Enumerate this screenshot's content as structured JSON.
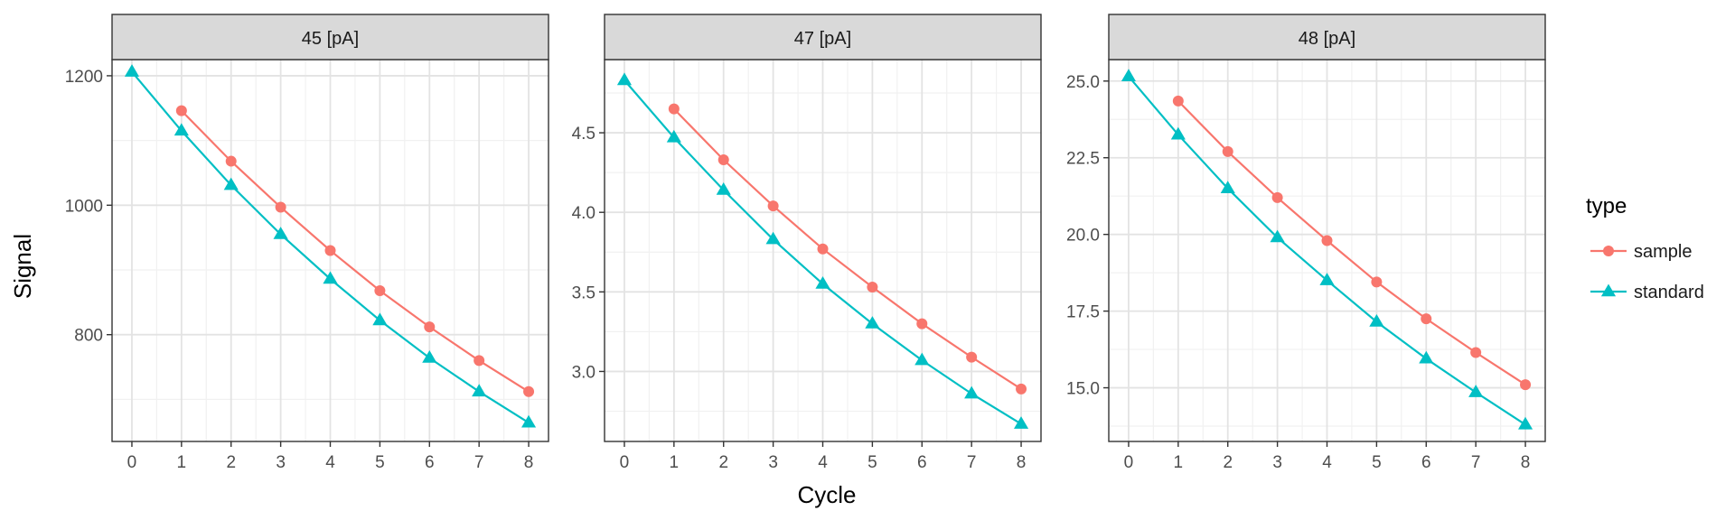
{
  "chart_data": {
    "type": "line",
    "ylabel": "Signal",
    "xlabel": "Cycle",
    "x": [
      0,
      1,
      2,
      3,
      4,
      5,
      6,
      7,
      8
    ],
    "x_ticks": [
      "0",
      "1",
      "2",
      "3",
      "4",
      "5",
      "6",
      "7",
      "8"
    ],
    "xlim": [
      -0.4,
      8.4
    ],
    "grid": true,
    "legend": {
      "title": "type",
      "position": "right",
      "entries": [
        {
          "name": "sample",
          "color": "#F8766D",
          "marker": "circle"
        },
        {
          "name": "standard",
          "color": "#00BFC4",
          "marker": "triangle"
        }
      ]
    },
    "panels": [
      {
        "strip": "45 [pA]",
        "ylim": [
          635,
          1225
        ],
        "y_ticks": [
          800,
          1000,
          1200
        ],
        "y_tick_labels": [
          "800",
          "1000",
          "1200"
        ],
        "series": [
          {
            "name": "sample",
            "x": [
              1,
              2,
              3,
              4,
              5,
              6,
              7,
              8
            ],
            "values": [
              1146,
              1068,
              997,
              930,
              868,
              812,
              760,
              712
            ]
          },
          {
            "name": "standard",
            "x": [
              0,
              1,
              2,
              3,
              4,
              5,
              6,
              7,
              8
            ],
            "values": [
              1206,
              1115,
              1031,
              955,
              886,
              822,
              764,
              712,
              664
            ]
          }
        ]
      },
      {
        "strip": "47 [pA]",
        "ylim": [
          2.56,
          4.96
        ],
        "y_ticks": [
          3.0,
          3.5,
          4.0,
          4.5
        ],
        "y_tick_labels": [
          "3.0",
          "3.5",
          "4.0",
          "4.5"
        ],
        "series": [
          {
            "name": "sample",
            "x": [
              1,
              2,
              3,
              4,
              5,
              6,
              7,
              8
            ],
            "values": [
              4.65,
              4.33,
              4.04,
              3.77,
              3.53,
              3.3,
              3.09,
              2.89
            ]
          },
          {
            "name": "standard",
            "x": [
              0,
              1,
              2,
              3,
              4,
              5,
              6,
              7,
              8
            ],
            "values": [
              4.83,
              4.47,
              4.14,
              3.83,
              3.55,
              3.3,
              3.07,
              2.86,
              2.67
            ]
          }
        ]
      },
      {
        "strip": "48 [pA]",
        "ylim": [
          13.25,
          25.7
        ],
        "y_ticks": [
          15.0,
          17.5,
          20.0,
          22.5,
          25.0
        ],
        "y_tick_labels": [
          "15.0",
          "17.5",
          "20.0",
          "22.5",
          "25.0"
        ],
        "series": [
          {
            "name": "sample",
            "x": [
              1,
              2,
              3,
              4,
              5,
              6,
              7,
              8
            ],
            "values": [
              24.35,
              22.7,
              21.2,
              19.8,
              18.45,
              17.25,
              16.15,
              15.1
            ]
          },
          {
            "name": "standard",
            "x": [
              0,
              1,
              2,
              3,
              4,
              5,
              6,
              7,
              8
            ],
            "values": [
              25.15,
              23.25,
              21.5,
              19.9,
              18.5,
              17.15,
              15.95,
              14.85,
              13.8
            ]
          }
        ]
      }
    ]
  }
}
